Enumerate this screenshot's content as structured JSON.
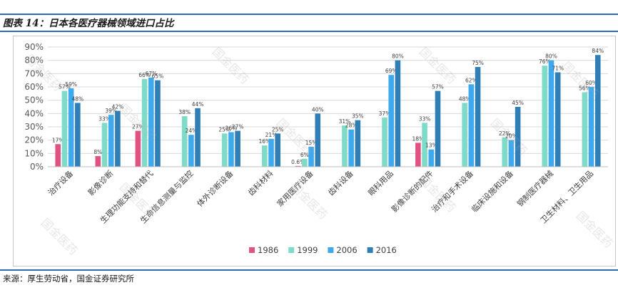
{
  "figure": {
    "title": "图表 14：日本各医疗器械领域进口占比",
    "source": "来源：厚生劳动省，国金证券研究所",
    "watermark": "国金医药"
  },
  "chart_data": {
    "type": "bar",
    "title": "",
    "xlabel": "",
    "ylabel": "",
    "ylim": [
      0,
      90
    ],
    "yticks": [
      "0%",
      "10%",
      "20%",
      "30%",
      "40%",
      "50%",
      "60%",
      "70%",
      "80%",
      "90%"
    ],
    "grid": true,
    "legend_position": "bottom",
    "categories": [
      "治疗设备",
      "影像诊断",
      "生理功能支持和替代",
      "生命信息测量与监控",
      "体外诊断设备",
      "齿科材料",
      "家用医疗设备",
      "齿科设备",
      "眼科用品",
      "影像诊断的配件",
      "治疗和手术设备",
      "临床设施和设备",
      "钢制医疗器械",
      "卫生材料、卫生用品"
    ],
    "series": [
      {
        "name": "1986",
        "color": "#e0527f",
        "values": [
          17,
          8,
          27,
          null,
          null,
          null,
          0.6,
          null,
          null,
          18,
          null,
          null,
          null,
          null
        ],
        "labels": [
          "17%",
          "8%",
          "27%",
          "",
          "",
          "",
          "0.6%",
          "",
          "",
          "18%",
          "",
          "",
          "",
          ""
        ]
      },
      {
        "name": "1999",
        "color": "#7fdbc9",
        "values": [
          57,
          33,
          66,
          38,
          25,
          16,
          6,
          31,
          37,
          33,
          48,
          22,
          76,
          56
        ],
        "labels": [
          "57%",
          "33%",
          "66%",
          "38%",
          "25%",
          "16%",
          "6%",
          "31%",
          "37%",
          "33%",
          "48%",
          "22%",
          "76%",
          "56%"
        ]
      },
      {
        "name": "2006",
        "color": "#3fa9ee",
        "values": [
          59,
          39,
          67,
          24,
          26,
          21,
          15,
          28,
          69,
          13,
          62,
          20,
          80,
          60
        ],
        "labels": [
          "59%",
          "39%",
          "67%",
          "24%",
          "26%",
          "21%",
          "15%",
          "28%",
          "69%",
          "13%",
          "62%",
          "20%",
          "80%",
          "60%"
        ]
      },
      {
        "name": "2016",
        "color": "#2f7fb6",
        "values": [
          48,
          42,
          65,
          44,
          27,
          25,
          40,
          35,
          80,
          57,
          75,
          45,
          71,
          84
        ],
        "labels": [
          "48%",
          "42%",
          "65%",
          "44%",
          "27%",
          "25%",
          "40%",
          "35%",
          "80%",
          "57%",
          "75%",
          "45%",
          "71%",
          "84%"
        ]
      }
    ]
  }
}
